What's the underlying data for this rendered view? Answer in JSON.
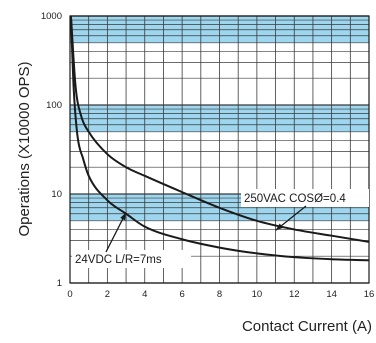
{
  "chart_data": {
    "type": "line",
    "xlabel": "Contact Current (A)",
    "ylabel": "Operations (X10000 OPS)",
    "xlim": [
      0,
      16
    ],
    "ylim": [
      1,
      1000
    ],
    "y_scale": "log",
    "x_ticks": [
      "0",
      "2",
      "4",
      "6",
      "8",
      "10",
      "12",
      "14",
      "16"
    ],
    "y_ticks": [
      {
        "value": 1,
        "label": "1"
      },
      {
        "value": 10,
        "label": "10"
      },
      {
        "value": 100,
        "label": "100"
      },
      {
        "value": 1000,
        "label": "1000"
      }
    ],
    "grid": true,
    "colors": {
      "band_fill": "#9dd6ee",
      "plot_fill": "#ffffff",
      "grid_line": "#3a3a3a",
      "curve": "#1a1a1a"
    },
    "series": [
      {
        "x": [
          0.05,
          0.3,
          0.6,
          1,
          2,
          3,
          4,
          6,
          8,
          10,
          12,
          14,
          16
        ],
        "y": [
          1000,
          160,
          75,
          50,
          28,
          20,
          16,
          10.5,
          7,
          5,
          4,
          3.4,
          2.9
        ]
      },
      {
        "x": [
          0.05,
          0.2,
          0.4,
          0.7,
          1,
          2,
          3,
          4,
          6,
          8,
          10,
          12,
          14,
          16
        ],
        "y": [
          1000,
          150,
          45,
          25,
          16,
          8.5,
          6,
          4.3,
          3.1,
          2.5,
          2.15,
          1.95,
          1.85,
          1.8
        ]
      }
    ],
    "annotations": [
      {
        "text": "250VAC COSØ=0.4",
        "target_x": 11,
        "target_y": 3.9
      },
      {
        "text": "24VDC L/R=7ms",
        "target_x": 3,
        "target_y": 6.2
      }
    ]
  }
}
